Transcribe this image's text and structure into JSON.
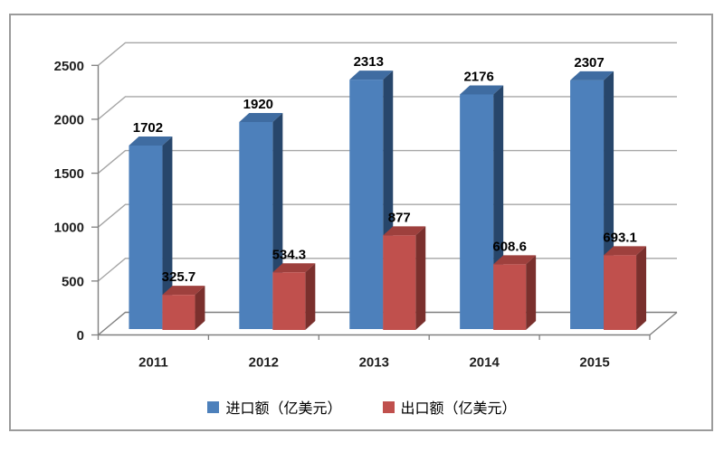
{
  "chart_data": {
    "type": "bar",
    "variant": "3d-clustered-column",
    "title": "",
    "categories": [
      "2011",
      "2012",
      "2013",
      "2014",
      "2015"
    ],
    "series": [
      {
        "name": "进口额（亿美元）",
        "values": [
          1702,
          1920,
          2313,
          2176,
          2307
        ],
        "labels": [
          "1702",
          "1920",
          "2313",
          "2176",
          "2307"
        ],
        "color": "#4d80bb",
        "color_top": "#3f6ca1",
        "color_side": "#27466b"
      },
      {
        "name": "出口额（亿美元）",
        "values": [
          325.7,
          534.3,
          877,
          608.6,
          693.1
        ],
        "labels": [
          "325.7",
          "534.3",
          "877",
          "608.6",
          "693.1"
        ],
        "color": "#c0504d",
        "color_top": "#9e403d",
        "color_side": "#7a302d"
      }
    ],
    "yticks": [
      0,
      500,
      1000,
      1500,
      2000,
      2500
    ],
    "ylim": [
      0,
      2500
    ],
    "xlabel": "",
    "ylabel": "",
    "grid": true,
    "legend_position": "bottom",
    "gridline_color": "#a6a6a6",
    "axis_color": "#7f7f7f",
    "frame_border_color": "#9b9b9b",
    "data_label_color": "#000000"
  }
}
